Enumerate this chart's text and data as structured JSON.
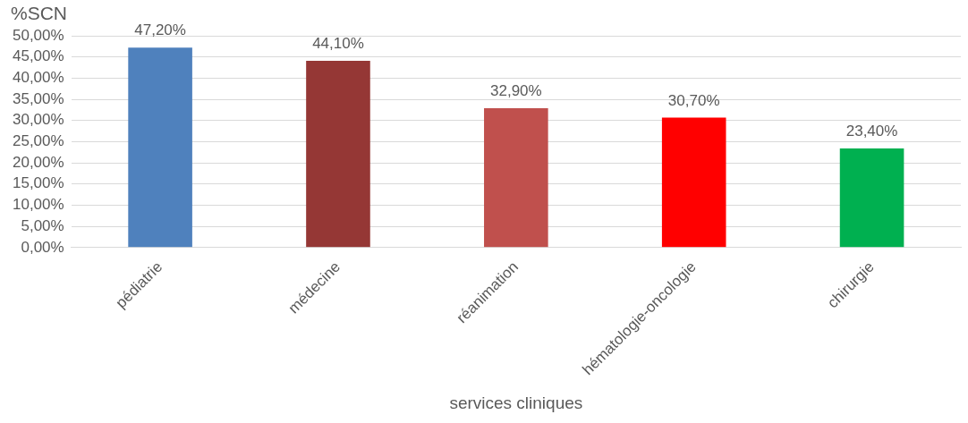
{
  "chart_data": {
    "type": "bar",
    "ylabel": "%SCN",
    "xlabel": "services cliniques",
    "categories": [
      "pédiatrie",
      "médecine",
      "réanimation",
      "hématologie-oncologie",
      "chirurgie"
    ],
    "values": [
      47.2,
      44.1,
      32.9,
      30.7,
      23.4
    ],
    "colors": [
      "#4f81bd",
      "#953735",
      "#c0504d",
      "#ff0000",
      "#00b050"
    ],
    "value_labels": [
      "47,20%",
      "44,10%",
      "32,90%",
      "30,70%",
      "23,40%"
    ],
    "ylim": [
      0,
      50
    ],
    "yticks": [
      {
        "value": 0,
        "label": "0,00%"
      },
      {
        "value": 5,
        "label": "5,00%"
      },
      {
        "value": 10,
        "label": "10,00%"
      },
      {
        "value": 15,
        "label": "15,00%"
      },
      {
        "value": 20,
        "label": "20,00%"
      },
      {
        "value": 25,
        "label": "25,00%"
      },
      {
        "value": 30,
        "label": "30,00%"
      },
      {
        "value": 35,
        "label": "35,00%"
      },
      {
        "value": 40,
        "label": "40,00%"
      },
      {
        "value": 45,
        "label": "45,00%"
      },
      {
        "value": 50,
        "label": "50,00%"
      }
    ],
    "grid": "y"
  }
}
